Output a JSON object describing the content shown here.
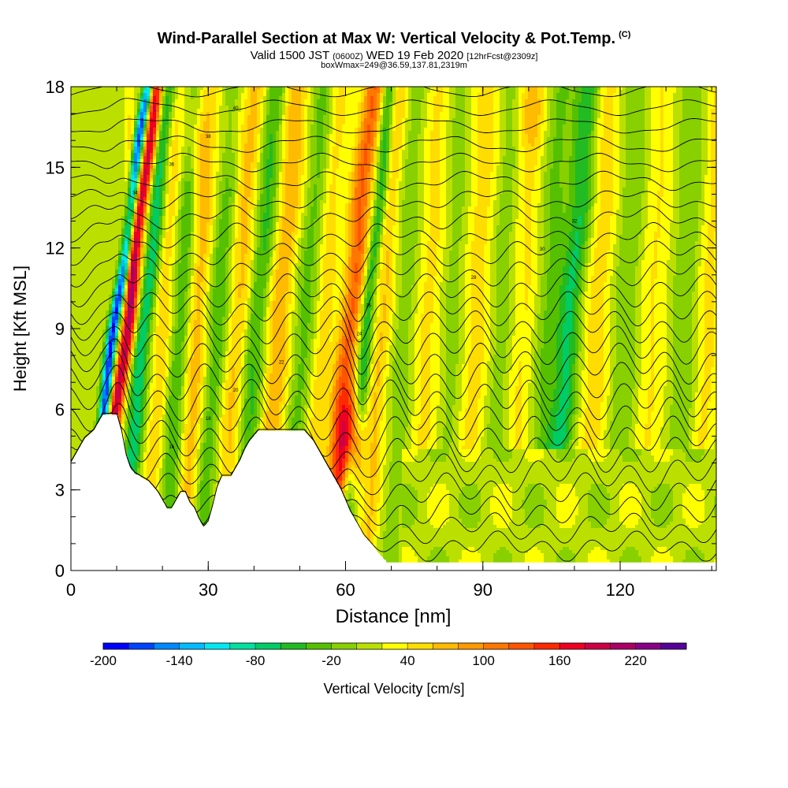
{
  "chart_data": {
    "type": "heatmap",
    "title": "Wind-Parallel Section at Max W: Vertical Velocity & Pot.Temp.",
    "title_unit": "(C)",
    "subtitle_prefix": "Valid 1500 JST",
    "subtitle_utc": "(0600Z)",
    "subtitle_date": "WED 19 Feb 2020",
    "subtitle_fcst": "[12hrFcst@2309z]",
    "subtitle2": "boxWmax=249@36.59,137.81,2319m",
    "xlabel": "Distance [nm]",
    "ylabel": "Height [Kft MSL]",
    "xlim": [
      0,
      141
    ],
    "ylim": [
      0,
      18
    ],
    "xticks": [
      0,
      30,
      60,
      90,
      120
    ],
    "yticks": [
      0,
      3,
      6,
      9,
      12,
      15,
      18
    ],
    "colorbar": {
      "label": "Vertical Velocity [cm/s]",
      "range": [
        -200,
        260
      ],
      "step": 20,
      "tick_values": [
        -200,
        -140,
        -80,
        -20,
        40,
        100,
        160,
        220
      ],
      "tick_labels": [
        "-200",
        "-140",
        "-80",
        "-20",
        "40",
        "100",
        "160",
        "220"
      ],
      "colors": [
        "#0000ff",
        "#0044ff",
        "#0088ff",
        "#00bbff",
        "#00e8f0",
        "#00e0a0",
        "#00cc66",
        "#22bb22",
        "#55c000",
        "#88d000",
        "#bbe000",
        "#ffff00",
        "#ffdd00",
        "#ffbb00",
        "#ff9900",
        "#ff7700",
        "#ff5500",
        "#ff2a00",
        "#ee0022",
        "#cc0044",
        "#aa0066",
        "#880088",
        "#550099"
      ]
    },
    "contour_labels": [
      "12",
      "16",
      "18",
      "20",
      "22",
      "24",
      "26",
      "28",
      "30",
      "32",
      "34",
      "36",
      "38",
      "40"
    ],
    "terrain_profile": {
      "x": [
        0,
        1,
        2,
        3,
        5,
        6,
        7,
        8,
        9,
        10,
        11,
        12,
        13,
        14,
        15,
        16,
        17,
        18,
        19,
        20,
        21,
        22,
        23,
        24,
        25,
        26,
        27,
        28,
        29,
        30,
        31,
        32,
        33,
        34,
        35,
        36,
        37,
        38,
        39,
        40,
        41,
        42,
        43,
        44,
        45,
        46,
        47,
        48,
        49,
        50,
        51,
        52,
        53,
        54,
        55,
        56,
        57,
        58,
        59,
        60,
        61,
        62,
        63,
        64,
        65,
        66,
        67,
        68,
        69,
        70,
        71,
        72,
        141
      ],
      "h": [
        4.0,
        4.3,
        4.6,
        4.9,
        5.2,
        5.5,
        5.8,
        5.8,
        5.8,
        5.8,
        5.2,
        4.3,
        3.8,
        3.6,
        3.5,
        3.4,
        3.3,
        3.1,
        2.9,
        2.6,
        2.3,
        2.3,
        2.6,
        2.9,
        2.9,
        2.5,
        2.3,
        1.9,
        1.6,
        1.8,
        2.4,
        3.1,
        3.5,
        3.5,
        3.5,
        3.8,
        4.1,
        4.5,
        4.8,
        5.0,
        5.2,
        5.2,
        5.2,
        5.2,
        5.2,
        5.2,
        5.2,
        5.2,
        5.2,
        5.2,
        5.2,
        5.0,
        4.8,
        4.5,
        4.2,
        3.9,
        3.6,
        3.3,
        3.0,
        2.6,
        2.2,
        1.9,
        1.6,
        1.3,
        1.1,
        0.9,
        0.7,
        0.5,
        0.3,
        0.3,
        0.3,
        0.3,
        0.3
      ]
    }
  }
}
